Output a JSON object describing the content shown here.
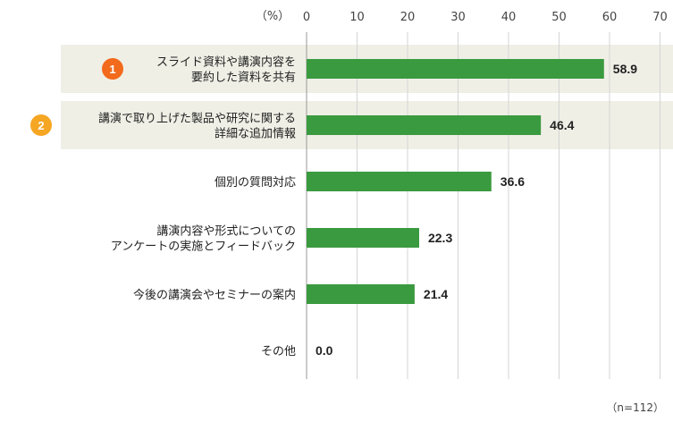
{
  "chart_data": {
    "type": "bar",
    "orientation": "horizontal",
    "unit_label": "（%）",
    "xlim": [
      0,
      70
    ],
    "xticks": [
      0,
      10,
      20,
      30,
      40,
      50,
      60,
      70
    ],
    "grid": true,
    "categories": [
      [
        "スライド資料や講演内容を",
        "要約した資料を共有"
      ],
      [
        "講演で取り上げた製品や研究に関する",
        "詳細な追加情報"
      ],
      [
        "個別の質問対応"
      ],
      [
        "講演内容や形式についての",
        "アンケートの実施とフィードバック"
      ],
      [
        "今後の講演会やセミナーの案内"
      ],
      [
        "その他"
      ]
    ],
    "values": [
      58.9,
      46.4,
      36.6,
      22.3,
      21.4,
      0.0
    ],
    "value_labels": [
      "58.9",
      "46.4",
      "36.6",
      "22.3",
      "21.4",
      "0.0"
    ],
    "highlights": [
      {
        "rank": "1",
        "index": 0,
        "color": "#f26a1b"
      },
      {
        "rank": "2",
        "index": 1,
        "color": "#f5a623"
      }
    ],
    "bar_color": "#3a9a3f",
    "highlight_band_color": "#efefe6",
    "note": "（n=112）"
  }
}
